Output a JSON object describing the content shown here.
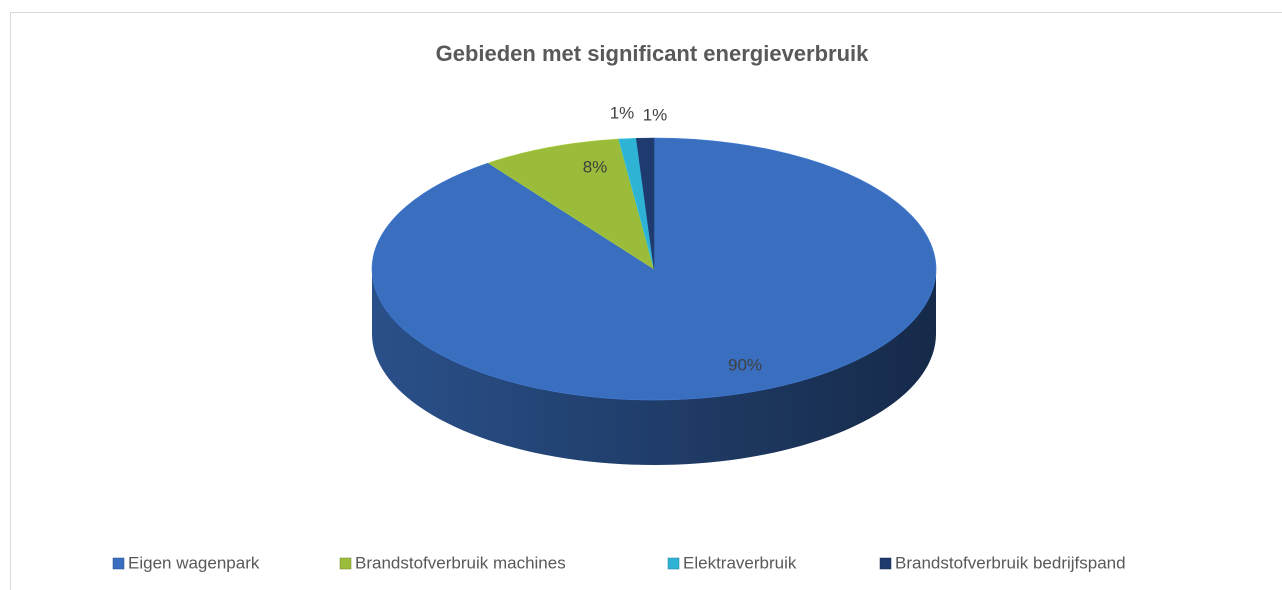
{
  "chart_data": {
    "type": "pie",
    "title": "Gebieden met significant energieverbruik",
    "categories": [
      "Eigen wagenpark",
      "Brandstofverbruik machines",
      "Elektraverbruik",
      "Brandstofverbruik bedrijfspand"
    ],
    "values": [
      90,
      8,
      1,
      1
    ],
    "value_labels": [
      "90%",
      "8%",
      "1%",
      "1%"
    ],
    "colors": [
      "#3a6fc0",
      "#9bbb3b",
      "#2fb3d4",
      "#1f3a6e"
    ],
    "legend": "bottom"
  }
}
